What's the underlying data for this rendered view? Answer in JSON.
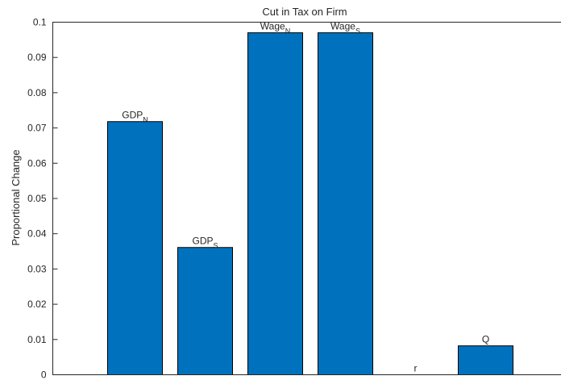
{
  "chart_data": {
    "type": "bar",
    "title": "Cut in Tax on Firm",
    "xlabel": "",
    "ylabel": "Proportional Change",
    "ylim": [
      0,
      0.1
    ],
    "yticks": [
      "0",
      "0.01",
      "0.02",
      "0.03",
      "0.04",
      "0.05",
      "0.06",
      "0.07",
      "0.08",
      "0.09",
      "0.1"
    ],
    "grid": false,
    "bar_color": "#0072BD",
    "categories": [
      {
        "name": "GDP",
        "sub": "N"
      },
      {
        "name": "GDP",
        "sub": "S"
      },
      {
        "name": "Wage",
        "sub": "N"
      },
      {
        "name": "Wage",
        "sub": "S"
      },
      {
        "name": "r",
        "sub": ""
      },
      {
        "name": "Q",
        "sub": ""
      }
    ],
    "values": [
      0.0718,
      0.0361,
      0.097,
      0.097,
      0.0,
      0.0082
    ]
  }
}
